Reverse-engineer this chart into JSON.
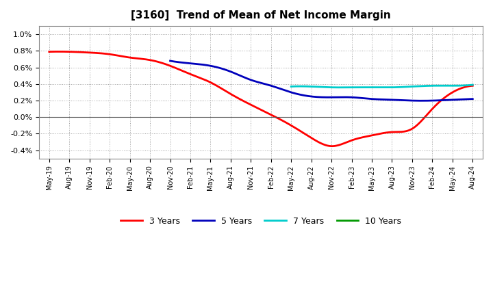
{
  "title": "[3160]  Trend of Mean of Net Income Margin",
  "background_color": "#ffffff",
  "plot_bg_color": "#ffffff",
  "legend": [
    "3 Years",
    "5 Years",
    "7 Years",
    "10 Years"
  ],
  "line_colors": [
    "#ff0000",
    "#0000bb",
    "#00cccc",
    "#009900"
  ],
  "x_tick_labels": [
    "May-19",
    "Aug-19",
    "Nov-19",
    "Feb-20",
    "May-20",
    "Aug-20",
    "Nov-20",
    "Feb-21",
    "May-21",
    "Aug-21",
    "Nov-21",
    "Feb-22",
    "May-22",
    "Aug-22",
    "Nov-22",
    "Feb-23",
    "May-23",
    "Aug-23",
    "Nov-23",
    "Feb-24",
    "May-24",
    "Aug-24"
  ],
  "series_3yr": [
    0.0079,
    0.0079,
    0.0078,
    0.0076,
    0.0072,
    0.0069,
    0.0062,
    0.0052,
    0.0042,
    0.0028,
    0.0015,
    0.0003,
    -0.001,
    -0.0025,
    -0.0035,
    -0.0028,
    -0.0022,
    -0.0018,
    -0.0014,
    0.001,
    0.003,
    0.0038
  ],
  "series_5yr": [
    null,
    null,
    null,
    null,
    null,
    null,
    0.0068,
    0.0065,
    0.0062,
    0.0055,
    0.0045,
    0.0038,
    0.003,
    0.0025,
    0.0024,
    0.0024,
    0.0022,
    0.0021,
    0.002,
    0.002,
    0.0021,
    0.0022
  ],
  "series_7yr": [
    null,
    null,
    null,
    null,
    null,
    null,
    null,
    null,
    null,
    null,
    null,
    null,
    0.0037,
    0.0037,
    0.0036,
    0.0036,
    0.0036,
    0.0036,
    0.0037,
    0.0038,
    0.0038,
    0.0039
  ],
  "series_10yr": [
    null,
    null,
    null,
    null,
    null,
    null,
    null,
    null,
    null,
    null,
    null,
    null,
    null,
    null,
    null,
    null,
    null,
    null,
    null,
    null,
    null,
    null
  ],
  "ytick_vals": [
    -0.004,
    -0.002,
    0.0,
    0.002,
    0.004,
    0.006,
    0.008,
    0.01
  ],
  "ytick_labs": [
    "-0.4%",
    "-0.2%",
    "0.0%",
    "0.2%",
    "0.4%",
    "0.6%",
    "0.8%",
    "1.0%"
  ],
  "ylim": [
    -0.005,
    0.011
  ]
}
